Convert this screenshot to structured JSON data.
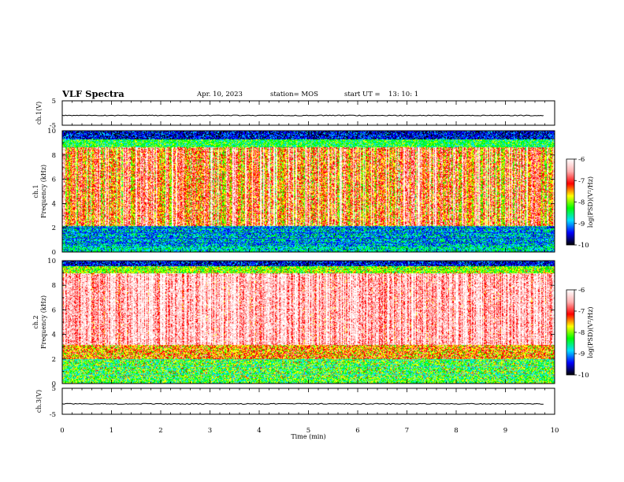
{
  "header": {
    "title": "VLF Spectra",
    "date": "Apr. 10, 2023",
    "station": "station= MOS",
    "start_label": "start  UT  =",
    "start_time": "13: 10: 1"
  },
  "colors": {
    "black": "#000000",
    "blue": "#0000ff",
    "cyan": "#00e0ff",
    "green": "#00ff00",
    "yellow": "#ffff00",
    "red": "#ff0000",
    "pink": "#ffb0b0",
    "white": "#ffffff"
  },
  "chart_data": [
    {
      "type": "line",
      "panel": "ch1-voltage",
      "ylabel": "ch.1(V)",
      "ylim": [
        -5,
        5
      ],
      "yticks": [
        "5",
        "-5"
      ],
      "x": [
        0,
        1,
        2,
        3,
        4,
        5,
        6,
        7,
        8,
        9,
        9.8
      ],
      "values": [
        -1,
        -1,
        -1,
        -1,
        -1,
        -1,
        -1,
        -1,
        -1,
        -1,
        -1
      ]
    },
    {
      "type": "heatmap",
      "panel": "ch1-spectrogram",
      "ylabel_line1": "ch.1",
      "ylabel_line2": "Frequency (kHz)",
      "ylim": [
        0,
        10
      ],
      "yticks": [
        "0",
        "2",
        "4",
        "6",
        "8",
        "10"
      ],
      "colorbar": {
        "label": "log(PSD)(V²/Hz)",
        "range": [
          -10,
          -6
        ],
        "ticks": [
          "-6",
          "-7",
          "-8",
          "-9",
          "-10"
        ]
      }
    },
    {
      "type": "heatmap",
      "panel": "ch2-spectrogram",
      "ylabel_line1": "ch.2",
      "ylabel_line2": "Frequency (kHz)",
      "ylim": [
        0,
        10
      ],
      "yticks": [
        "0",
        "2",
        "4",
        "6",
        "8",
        "10"
      ],
      "colorbar": {
        "label": "log(PSD)(V²/Hz)",
        "range": [
          -10,
          -6
        ],
        "ticks": [
          "-6",
          "-7",
          "-8",
          "-9",
          "-10"
        ]
      }
    },
    {
      "type": "line",
      "panel": "ch3-voltage",
      "ylabel": "ch.3(V)",
      "ylim": [
        -5,
        5
      ],
      "yticks": [
        "5",
        "-5"
      ],
      "x": [
        0,
        1,
        2,
        3,
        4,
        5,
        6,
        7,
        8,
        9,
        9.8
      ],
      "values": [
        -1,
        -1,
        -1,
        -1,
        -1,
        -1,
        -1,
        -1,
        -1,
        -1,
        -1
      ]
    }
  ],
  "xaxis": {
    "label": "Time  (min)",
    "range": [
      0,
      10
    ],
    "ticks": [
      "0",
      "1",
      "2",
      "3",
      "4",
      "5",
      "6",
      "7",
      "8",
      "9",
      "10"
    ]
  }
}
